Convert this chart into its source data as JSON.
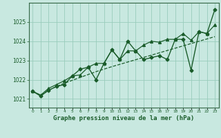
{
  "title": "Graphe pression niveau de la mer (hPa)",
  "background_color": "#c8e8e0",
  "plot_bg_color": "#c8e8e0",
  "grid_color": "#99ccbb",
  "line_color": "#1a5c2a",
  "spine_color": "#336644",
  "xlim": [
    -0.5,
    23.5
  ],
  "ylim": [
    1020.55,
    1026.0
  ],
  "yticks": [
    1021,
    1022,
    1023,
    1024,
    1025
  ],
  "xticks": [
    0,
    1,
    2,
    3,
    4,
    5,
    6,
    7,
    8,
    9,
    10,
    11,
    12,
    13,
    14,
    15,
    16,
    17,
    18,
    19,
    20,
    21,
    22,
    23
  ],
  "series1_x": [
    0,
    1,
    2,
    3,
    4,
    5,
    6,
    7,
    8,
    9,
    10,
    11,
    12,
    13,
    14,
    15,
    16,
    17,
    18,
    19,
    20,
    21,
    22,
    23
  ],
  "series1_y": [
    1021.4,
    1021.15,
    1021.45,
    1021.65,
    1021.75,
    1022.2,
    1022.55,
    1022.65,
    1022.0,
    1022.85,
    1023.55,
    1023.05,
    1024.0,
    1023.5,
    1023.05,
    1023.15,
    1023.25,
    1023.05,
    1024.1,
    1024.1,
    1022.5,
    1024.5,
    1024.4,
    1025.65
  ],
  "series2_x": [
    0,
    1,
    2,
    3,
    4,
    5,
    6,
    7,
    8,
    9,
    10,
    11,
    12,
    13,
    14,
    15,
    16,
    17,
    18,
    19,
    20,
    21,
    22,
    23
  ],
  "series2_y": [
    1021.4,
    1021.2,
    1021.55,
    1021.75,
    1021.95,
    1022.2,
    1022.25,
    1022.65,
    1022.85,
    1022.85,
    1023.55,
    1023.05,
    1023.5,
    1023.5,
    1023.8,
    1024.0,
    1023.95,
    1024.1,
    1024.1,
    1024.4,
    1024.05,
    1024.5,
    1024.4,
    1024.85
  ],
  "series3_x": [
    0,
    1,
    2,
    3,
    4,
    5,
    6,
    7,
    8,
    9,
    10,
    11,
    12,
    13,
    14,
    15,
    16,
    17,
    18,
    19,
    20,
    21,
    22,
    23
  ],
  "series3_y": [
    1021.4,
    1021.2,
    1021.45,
    1021.65,
    1021.82,
    1021.97,
    1022.12,
    1022.27,
    1022.42,
    1022.55,
    1022.68,
    1022.8,
    1022.92,
    1023.04,
    1023.16,
    1023.28,
    1023.4,
    1023.52,
    1023.64,
    1023.76,
    1023.88,
    1024.0,
    1024.12,
    1024.24
  ]
}
